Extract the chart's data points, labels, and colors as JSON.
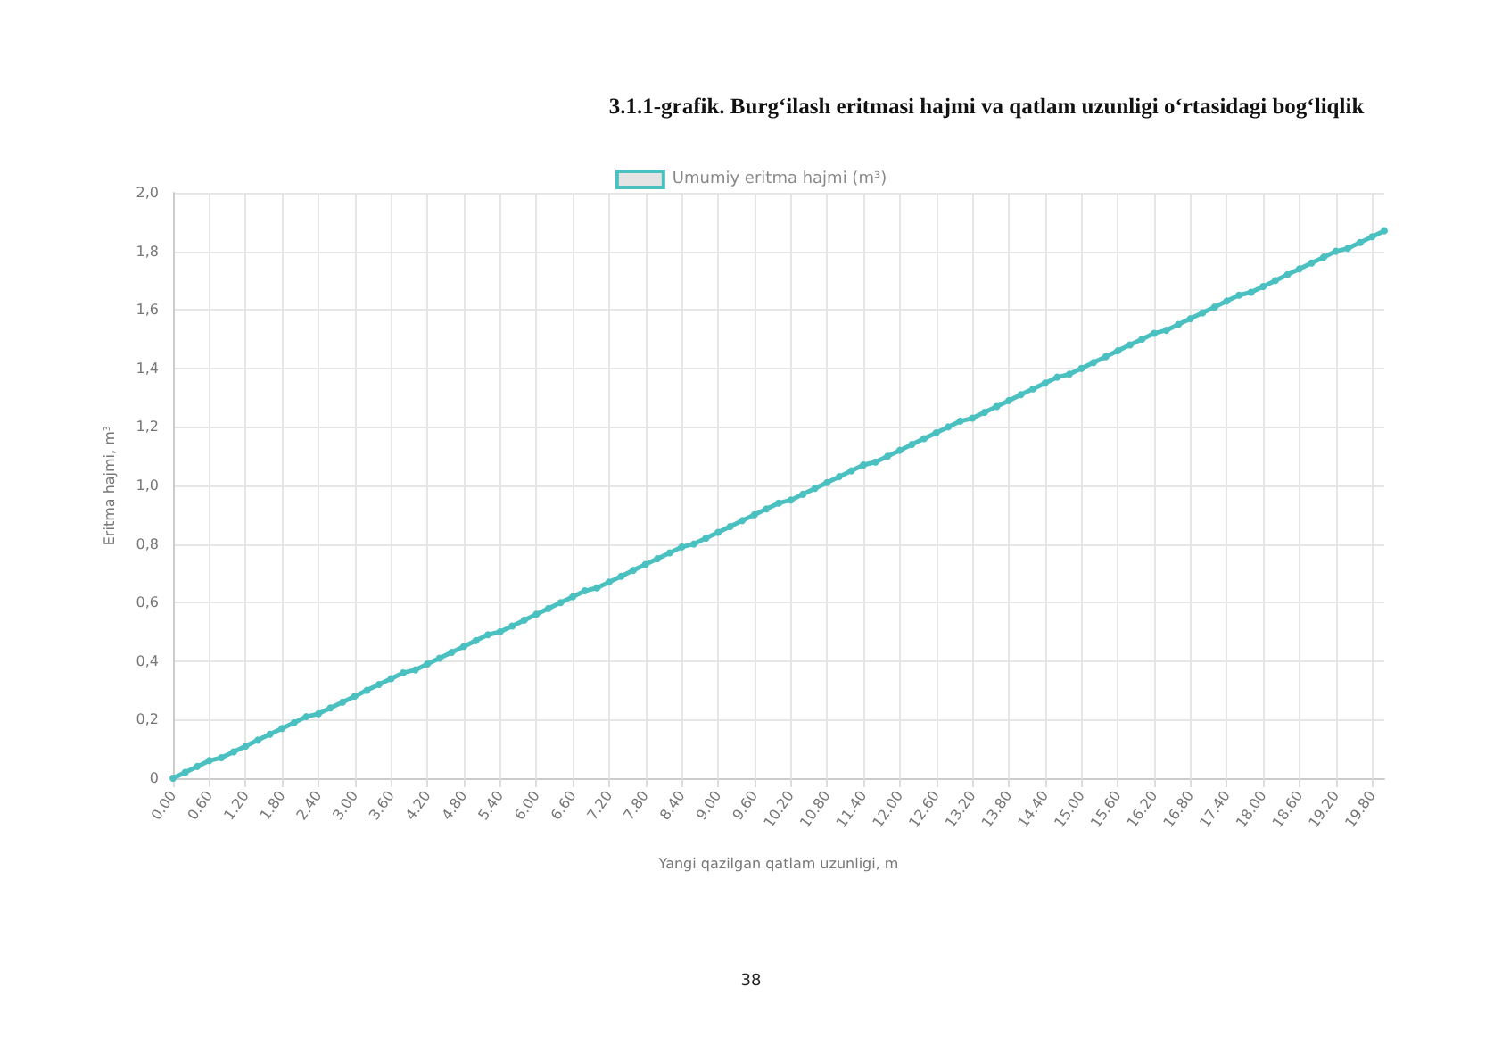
{
  "chart_data": {
    "type": "line",
    "title": "3.1.1-grafik. Burg‘ilash eritmasi hajmi va qatlam uzunligi o‘rtasidagi bog‘liqlik",
    "xlabel": "Yangi qazilgan qatlam uzunligi, m",
    "ylabel": "Eritma hajmi, m³",
    "annotations": [
      "38"
    ],
    "categories": [
      "0.00",
      null,
      null,
      "0.60",
      null,
      null,
      "1.20",
      null,
      null,
      "1.80",
      null,
      null,
      "2.40",
      null,
      null,
      "3.00",
      null,
      null,
      "3.60",
      null,
      null,
      "4.20",
      null,
      null,
      "4.80",
      null,
      null,
      "5.40",
      null,
      null,
      "6.00",
      null,
      null,
      "6.60",
      null,
      null,
      "7.20",
      null,
      null,
      "7.80",
      null,
      null,
      "8.40",
      null,
      null,
      "9.00",
      null,
      null,
      "9.60",
      null,
      null,
      "10.20",
      null,
      null,
      "10.80",
      null,
      null,
      "11.40",
      null,
      null,
      "12.00",
      null,
      null,
      "12.60",
      null,
      null,
      "13.20",
      null,
      null,
      "13.80",
      null,
      null,
      "14.40",
      null,
      null,
      "15.00",
      null,
      null,
      "15.60",
      null,
      null,
      "16.20",
      null,
      null,
      "16.80",
      null,
      null,
      "17.40",
      null,
      null,
      "18.00",
      null,
      null,
      "18.60",
      null,
      null,
      "19.20",
      null,
      null,
      "19.80",
      null
    ],
    "series": [
      {
        "name": "Umumiy eritma hajmi (m³)",
        "color": "#4bc0c0",
        "values": [
          0,
          0.02,
          0.04,
          0.06,
          0.07,
          0.09,
          0.11,
          0.13,
          0.15,
          0.17,
          0.19,
          0.21,
          0.22,
          0.24,
          0.26,
          0.28,
          0.3,
          0.32,
          0.34,
          0.36,
          0.37,
          0.39,
          0.41,
          0.43,
          0.45,
          0.47,
          0.49,
          0.5,
          0.52,
          0.54,
          0.56,
          0.58,
          0.6,
          0.62,
          0.64,
          0.65,
          0.67,
          0.69,
          0.71,
          0.73,
          0.75,
          0.77,
          0.79,
          0.8,
          0.82,
          0.84,
          0.86,
          0.88,
          0.9,
          0.92,
          0.94,
          0.95,
          0.97,
          0.99,
          1.01,
          1.03,
          1.05,
          1.07,
          1.08,
          1.1,
          1.12,
          1.14,
          1.16,
          1.18,
          1.2,
          1.22,
          1.23,
          1.25,
          1.27,
          1.29,
          1.31,
          1.33,
          1.35,
          1.37,
          1.38,
          1.4,
          1.42,
          1.44,
          1.46,
          1.48,
          1.5,
          1.52,
          1.53,
          1.55,
          1.57,
          1.59,
          1.61,
          1.63,
          1.65,
          1.66,
          1.68,
          1.7,
          1.72,
          1.74,
          1.76,
          1.78,
          1.8,
          1.81,
          1.83,
          1.85,
          1.87
        ]
      }
    ],
    "ylim": [
      0,
      2.0
    ],
    "yticks": [
      0,
      {
        "value": 0.2,
        "label": "0,2"
      },
      {
        "value": 0.4,
        "label": "0,4"
      },
      {
        "value": 0.6,
        "label": "0,6"
      },
      {
        "value": 0.8,
        "label": "0,8"
      },
      {
        "value": 1.0,
        "label": "1,0"
      },
      {
        "value": 1.2,
        "label": "1,2"
      },
      {
        "value": 1.4,
        "label": "1,4"
      },
      {
        "value": 1.6,
        "label": "1,6"
      },
      {
        "value": 1.8,
        "label": "1,8"
      },
      {
        "value": 2.0,
        "label": "2,0"
      }
    ],
    "grid": true,
    "legend": "top",
    "marker": "circle",
    "line_style": "solid"
  }
}
